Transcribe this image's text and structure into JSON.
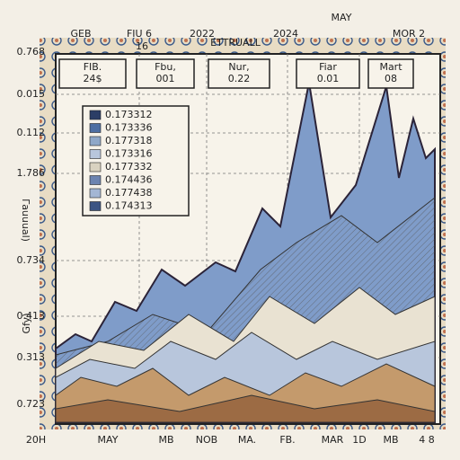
{
  "top_labels": [
    "GEB",
    "FIU 6",
    "16",
    "2022",
    "ETTRUALL",
    "2024",
    "MAY",
    "MOR 2"
  ],
  "y_labels": [
    "0.768",
    "0.015",
    "0.112",
    "1.786",
    "0.734",
    "0.413",
    "0.313",
    "0.723"
  ],
  "y_titles": [
    "Γauuual)",
    "Gfy)"
  ],
  "callouts": [
    [
      "FIB.",
      "24$"
    ],
    [
      "Fbu,",
      "001"
    ],
    [
      "Nur,",
      "0.22"
    ],
    [
      "Fiar",
      "0.01"
    ],
    [
      "Mart",
      "08"
    ]
  ],
  "legend": [
    "0.173312",
    "0.173336",
    "0.177318",
    "0.173316",
    "0.177332",
    "0.174436",
    "0.177438",
    "0.174313"
  ],
  "x_labels": [
    "20H",
    "MAY",
    "MB",
    "NOB",
    "MA.",
    "FB.",
    "MAR",
    "1D",
    "MB",
    "4 8"
  ]
}
